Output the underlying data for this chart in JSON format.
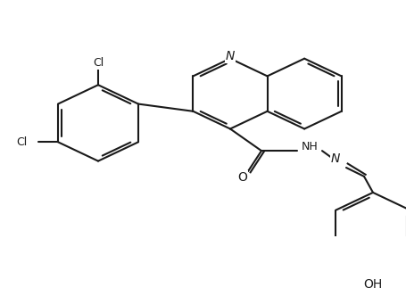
{
  "bg_color": "#ffffff",
  "bond_color": "#1a1a1a",
  "text_color": "#1a1a1a",
  "label_N": "N",
  "label_NH": "NH",
  "label_N2": "N",
  "label_O": "O",
  "label_Cl1": "Cl",
  "label_Cl2": "Cl",
  "label_OH": "OH",
  "figsize": [
    4.55,
    3.23
  ],
  "dpi": 100,
  "line_width": 1.5
}
